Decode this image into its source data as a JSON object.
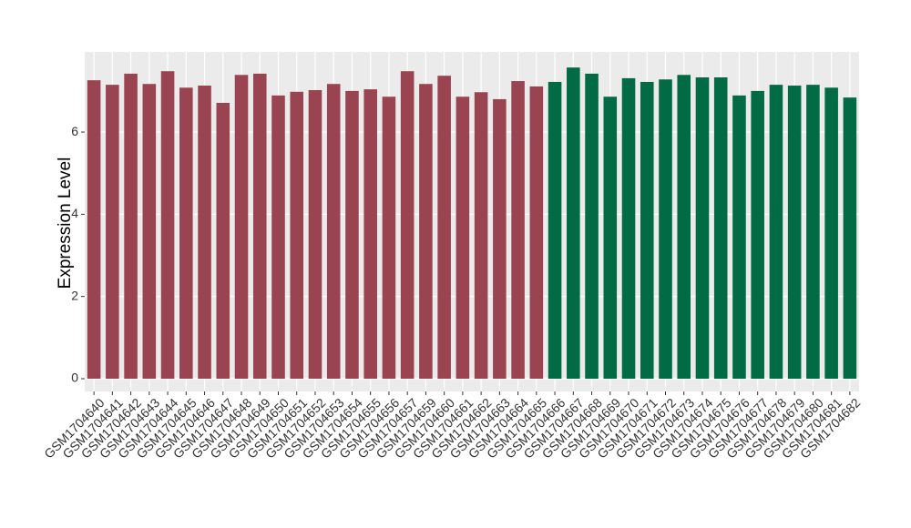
{
  "chart_data": {
    "type": "bar",
    "y_label": "Expression Level",
    "categories": [
      "GSM1704640",
      "GSM1704641",
      "GSM1704642",
      "GSM1704643",
      "GSM1704644",
      "GSM1704645",
      "GSM1704646",
      "GSM1704647",
      "GSM1704648",
      "GSM1704649",
      "GSM1704650",
      "GSM1704651",
      "GSM1704652",
      "GSM1704653",
      "GSM1704654",
      "GSM1704655",
      "GSM1704656",
      "GSM1704657",
      "GSM1704659",
      "GSM1704660",
      "GSM1704661",
      "GSM1704662",
      "GSM1704663",
      "GSM1704664",
      "GSM1704665",
      "GSM1704666",
      "GSM1704667",
      "GSM1704668",
      "GSM1704669",
      "GSM1704670",
      "GSM1704671",
      "GSM1704672",
      "GSM1704673",
      "GSM1704674",
      "GSM1704675",
      "GSM1704676",
      "GSM1704677",
      "GSM1704678",
      "GSM1704679",
      "GSM1704680",
      "GSM1704681",
      "GSM1704682"
    ],
    "values": [
      7.26,
      7.15,
      7.42,
      7.17,
      7.48,
      7.08,
      7.13,
      6.71,
      7.39,
      7.42,
      6.89,
      6.98,
      7.02,
      7.17,
      7.0,
      7.04,
      6.86,
      7.48,
      7.17,
      7.37,
      6.86,
      6.97,
      6.8,
      7.24,
      7.11,
      7.22,
      7.57,
      7.42,
      6.86,
      7.31,
      7.22,
      7.28,
      7.39,
      7.33,
      7.33,
      6.89,
      7.0,
      7.15,
      7.13,
      7.15,
      7.08,
      6.84
    ],
    "colors": [
      "#9b4451",
      "#9b4451",
      "#9b4451",
      "#9b4451",
      "#9b4451",
      "#9b4451",
      "#9b4451",
      "#9b4451",
      "#9b4451",
      "#9b4451",
      "#9b4451",
      "#9b4451",
      "#9b4451",
      "#9b4451",
      "#9b4451",
      "#9b4451",
      "#9b4451",
      "#9b4451",
      "#9b4451",
      "#9b4451",
      "#9b4451",
      "#9b4451",
      "#9b4451",
      "#9b4451",
      "#9b4451",
      "#006b45",
      "#006b45",
      "#006b45",
      "#006b45",
      "#006b45",
      "#006b45",
      "#006b45",
      "#006b45",
      "#006b45",
      "#006b45",
      "#006b45",
      "#006b45",
      "#006b45",
      "#006b45",
      "#006b45",
      "#006b45",
      "#006b45"
    ],
    "ylim": [
      -0.31,
      7.95
    ],
    "yticks": [
      0,
      2,
      4,
      6
    ],
    "grid": true
  }
}
